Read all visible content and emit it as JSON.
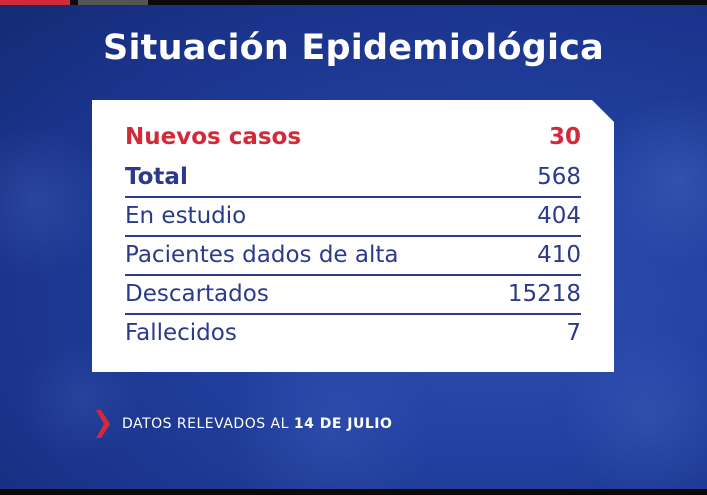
{
  "title": "Situación Epidemiológica",
  "rows": [
    {
      "label": "Nuevos casos",
      "value": "30"
    },
    {
      "label": "Total",
      "value": "568"
    },
    {
      "label": "En estudio",
      "value": "404"
    },
    {
      "label": "Pacientes dados de alta",
      "value": "410"
    },
    {
      "label": "Descartados",
      "value": "15218"
    },
    {
      "label": "Fallecidos",
      "value": "7"
    }
  ],
  "footer": {
    "prefix": "DATOS RELEVADOS AL",
    "date": "14 DE JULIO"
  },
  "colors": {
    "background": "#213f9e",
    "accent_red": "#d32a3a",
    "text_blue": "#2b3a8c",
    "card": "#ffffff"
  },
  "icons": {
    "footer_marker": "chevron-right-icon"
  }
}
